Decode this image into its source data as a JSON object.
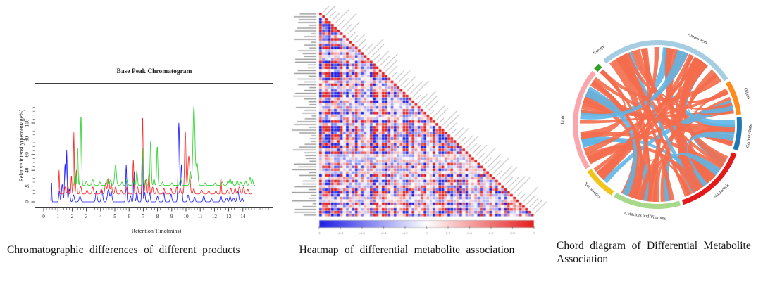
{
  "chart_data": [
    {
      "type": "line",
      "title": "Base Peak Chromatogram",
      "xlabel": "Retention Time(mins)",
      "ylabel": "Relative intensity(percentage%)",
      "caption": "Chromatographic differences of different products",
      "x_ticks": [
        0,
        1,
        2,
        3,
        4,
        5,
        6,
        7,
        8,
        9,
        10,
        11,
        12,
        13,
        14
      ],
      "y_ticks": [
        0,
        20,
        40,
        60,
        80,
        100
      ],
      "xlim": [
        0,
        16
      ],
      "ylim": [
        0,
        150
      ],
      "grid": false,
      "series": [
        {
          "name": "blue",
          "color": "#2020ff",
          "baseline": 0,
          "start": 0.5,
          "end": 14.1,
          "peaks": [
            [
              0.55,
              27,
              0.02
            ],
            [
              1.1,
              14,
              0.04
            ],
            [
              1.3,
              22,
              0.05
            ],
            [
              1.5,
              48,
              0.04
            ],
            [
              1.62,
              65,
              0.03
            ],
            [
              1.8,
              16,
              0.05
            ],
            [
              2.1,
              9,
              0.05
            ],
            [
              2.55,
              7,
              0.06
            ],
            [
              3.7,
              14,
              0.05
            ],
            [
              4.1,
              15,
              0.05
            ],
            [
              4.55,
              16,
              0.07
            ],
            [
              4.75,
              13,
              0.05
            ],
            [
              5.8,
              47,
              0.035
            ],
            [
              6.1,
              8,
              0.04
            ],
            [
              6.35,
              40,
              0.035
            ],
            [
              6.55,
              12,
              0.04
            ],
            [
              6.93,
              68,
              0.035
            ],
            [
              7.1,
              12,
              0.04
            ],
            [
              7.45,
              12,
              0.04
            ],
            [
              8.0,
              7,
              0.05
            ],
            [
              8.45,
              12,
              0.04
            ],
            [
              8.95,
              10,
              0.05
            ],
            [
              9.5,
              100,
              0.05
            ],
            [
              9.68,
              47,
              0.04
            ],
            [
              10.15,
              9,
              0.05
            ],
            [
              10.6,
              6,
              0.05
            ],
            [
              11.25,
              8,
              0.05
            ],
            [
              11.8,
              4,
              0.05
            ],
            [
              12.45,
              8,
              0.05
            ],
            [
              12.85,
              5,
              0.05
            ],
            [
              13.1,
              7,
              0.05
            ],
            [
              13.35,
              5,
              0.05
            ],
            [
              13.65,
              14,
              0.06
            ],
            [
              13.95,
              5,
              0.05
            ]
          ]
        },
        {
          "name": "red",
          "color": "#ff2a2a",
          "baseline": 10,
          "start": 1.0,
          "end": 14.65,
          "peaks": [
            [
              1.08,
              30,
              0.025
            ],
            [
              1.5,
              9,
              0.04
            ],
            [
              1.7,
              11,
              0.04
            ],
            [
              1.95,
              24,
              0.03
            ],
            [
              2.12,
              78,
              0.03
            ],
            [
              2.3,
              30,
              0.035
            ],
            [
              2.6,
              10,
              0.05
            ],
            [
              3.05,
              5,
              0.05
            ],
            [
              3.45,
              9,
              0.05
            ],
            [
              4.05,
              6,
              0.05
            ],
            [
              4.35,
              14,
              0.05
            ],
            [
              4.55,
              20,
              0.06
            ],
            [
              4.75,
              12,
              0.05
            ],
            [
              5.05,
              9,
              0.05
            ],
            [
              5.45,
              5,
              0.05
            ],
            [
              5.85,
              9,
              0.05
            ],
            [
              6.3,
              43,
              0.035
            ],
            [
              6.6,
              9,
              0.04
            ],
            [
              6.95,
              100,
              0.035
            ],
            [
              7.15,
              18,
              0.04
            ],
            [
              7.4,
              27,
              0.04
            ],
            [
              7.65,
              9,
              0.04
            ],
            [
              7.95,
              7,
              0.05
            ],
            [
              8.45,
              7,
              0.05
            ],
            [
              8.95,
              7,
              0.05
            ],
            [
              9.35,
              9,
              0.05
            ],
            [
              9.6,
              7,
              0.05
            ],
            [
              9.95,
              80,
              0.05
            ],
            [
              10.2,
              48,
              0.07
            ],
            [
              10.55,
              7,
              0.05
            ],
            [
              11.1,
              5,
              0.06
            ],
            [
              11.6,
              4,
              0.06
            ],
            [
              12.1,
              4,
              0.05
            ],
            [
              12.45,
              20,
              0.035
            ],
            [
              12.9,
              5,
              0.05
            ],
            [
              13.15,
              7,
              0.05
            ],
            [
              13.45,
              7,
              0.05
            ],
            [
              13.75,
              9,
              0.06
            ],
            [
              14.05,
              9,
              0.05
            ],
            [
              14.35,
              6,
              0.05
            ]
          ]
        },
        {
          "name": "green",
          "color": "#2fd52f",
          "baseline": 21,
          "start": 2.05,
          "end": 14.85,
          "peaks": [
            [
              2.2,
              19,
              0.03
            ],
            [
              2.38,
              49,
              0.035
            ],
            [
              2.62,
              89,
              0.04
            ],
            [
              3.0,
              5,
              0.05
            ],
            [
              3.45,
              7,
              0.06
            ],
            [
              3.95,
              4,
              0.05
            ],
            [
              4.5,
              8,
              0.05
            ],
            [
              4.7,
              7,
              0.05
            ],
            [
              5.05,
              26,
              0.06
            ],
            [
              5.5,
              4,
              0.05
            ],
            [
              5.85,
              7,
              0.05
            ],
            [
              6.3,
              5,
              0.05
            ],
            [
              6.55,
              19,
              0.04
            ],
            [
              6.95,
              47,
              0.03
            ],
            [
              7.2,
              8,
              0.04
            ],
            [
              7.52,
              57,
              0.04
            ],
            [
              7.75,
              9,
              0.04
            ],
            [
              7.98,
              50,
              0.04
            ],
            [
              8.35,
              4,
              0.05
            ],
            [
              9.0,
              3,
              0.05
            ],
            [
              9.62,
              9,
              0.05
            ],
            [
              10.3,
              18,
              0.05
            ],
            [
              10.56,
              101,
              0.07
            ],
            [
              10.78,
              28,
              0.06
            ],
            [
              11.35,
              3,
              0.05
            ],
            [
              12.05,
              3,
              0.05
            ],
            [
              12.55,
              4,
              0.05
            ],
            [
              12.95,
              6,
              0.05
            ],
            [
              13.1,
              9,
              0.04
            ],
            [
              13.25,
              6,
              0.04
            ],
            [
              13.6,
              6,
              0.05
            ],
            [
              13.85,
              4,
              0.05
            ],
            [
              14.2,
              5,
              0.05
            ],
            [
              14.5,
              10,
              0.05
            ],
            [
              14.68,
              7,
              0.04
            ]
          ]
        }
      ]
    },
    {
      "type": "heatmap",
      "caption": "Heatmap of differential metabolite association",
      "shape": "lower-triangle correlation matrix, red diagonal, metabolite labels too small to read",
      "matrix_size": 72,
      "colorbar": {
        "min": -1,
        "max": 1,
        "tick_labels": [
          "-1",
          "-0.8",
          "-0.6",
          "-0.4",
          "-0.2",
          "0",
          "0.2",
          "0.4",
          "0.6",
          "0.8",
          "1"
        ],
        "negative_color": "#1c1ce6",
        "neutral_color": "#ffffff",
        "positive_color": "#e61c1c"
      }
    },
    {
      "type": "chord",
      "caption": "Chord diagram of Differential Metabolite Association",
      "segments": [
        {
          "label": "Amino acid",
          "color": "#a6cee3",
          "start_deg": -40,
          "end_deg": 57,
          "label_deg": 25
        },
        {
          "label": "Others",
          "color": "#ff8c1a",
          "start_deg": 59,
          "end_deg": 83,
          "label_deg": 71
        },
        {
          "label": "Carbohydrate",
          "color": "#1f78b4",
          "start_deg": 85,
          "end_deg": 108,
          "label_deg": 97
        },
        {
          "label": "Nucleotide",
          "color": "#e31a1c",
          "start_deg": 110.5,
          "end_deg": 162,
          "label_deg": 136
        },
        {
          "label": "Cofactors and Vitamins",
          "color": "#a8d88a",
          "start_deg": 164,
          "end_deg": 211,
          "label_deg": 187.5
        },
        {
          "label": "Xenobiotics",
          "color": "#f2c318",
          "start_deg": 213,
          "end_deg": 236,
          "label_deg": 224.5
        },
        {
          "label": "Lipid",
          "color": "#f9a7ac",
          "start_deg": 238,
          "end_deg": 309.5,
          "label_deg": 273
        },
        {
          "label": "Energy",
          "color": "#33a02c",
          "start_deg": 311.5,
          "end_deg": 316,
          "label_deg": 322
        }
      ],
      "ribbon_colors": {
        "red": "#f46d4c",
        "blue": "#5fb6e6"
      }
    }
  ]
}
